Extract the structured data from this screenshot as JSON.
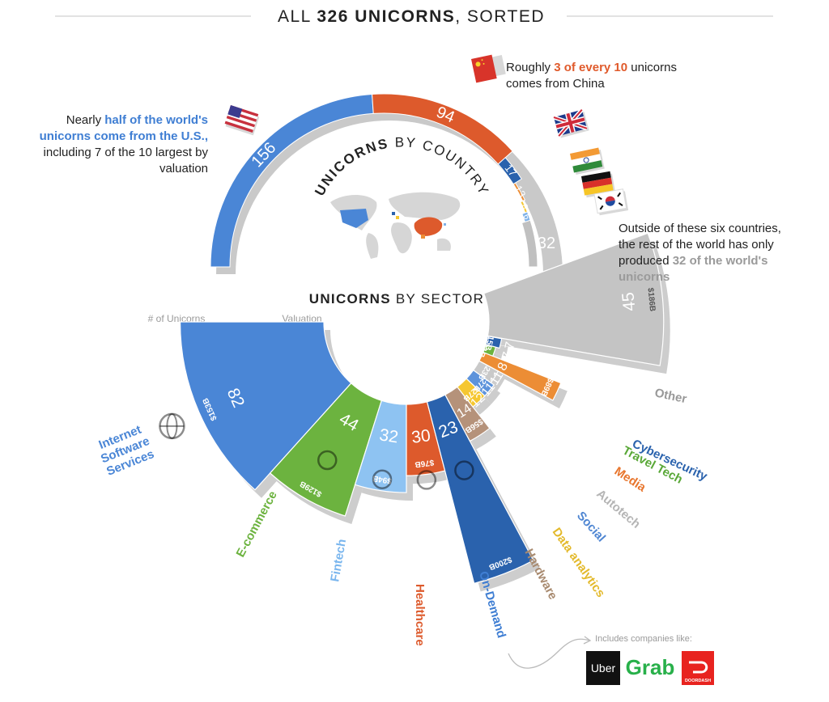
{
  "header": {
    "title_pre": "ALL ",
    "title_bold": "326 UNICORNS",
    "title_post": ", SORTED"
  },
  "colors": {
    "us": "#4a86d6",
    "china": "#dd5a2c",
    "uk": "#2a62ad",
    "india": "#ec8d35",
    "germany": "#f5c731",
    "korea": "#7fb2e8",
    "rest": "#c0c0c0",
    "shadow": "#c9c9c9",
    "us_text": "#3f7ed3",
    "china_text": "#e05a2b",
    "grey_text": "#9a9a9a"
  },
  "chart_data": [
    {
      "type": "pie",
      "title_bold": "UNICORNS",
      "title_rest": " BY COUNTRY",
      "categories": [
        "United States",
        "China",
        "United Kingdom",
        "India",
        "Germany",
        "South Korea",
        "Rest of world"
      ],
      "values": [
        156,
        94,
        17,
        13,
        8,
        6,
        32
      ],
      "labels": [
        "156",
        "94",
        "17",
        "13",
        "8",
        "6",
        "32"
      ],
      "total": 326
    },
    {
      "type": "pie",
      "title_bold": "UNICORNS",
      "title_rest": " BY SECTOR",
      "column_label_count": "# of Unicorns",
      "column_label_valuation": "Valuation",
      "categories": [
        "Internet Software Services",
        "E-commerce",
        "Fintech",
        "Healthcare",
        "On-Demand",
        "Hardware",
        "Data analytics",
        "Social",
        "Autotech",
        "Media",
        "Travel Tech",
        "Cybersecurity",
        "Other"
      ],
      "display_names": [
        [
          "Internet",
          "Software",
          "Services"
        ],
        [
          "E-commerce"
        ],
        [
          "Fintech"
        ],
        [
          "Healthcare"
        ],
        [
          "On-Demand"
        ],
        [
          "Hardware"
        ],
        [
          "Data analytics"
        ],
        [
          "Social"
        ],
        [
          "Autotech"
        ],
        [
          "Media"
        ],
        [
          "Travel Tech"
        ],
        [
          "Cybersecurity"
        ],
        [
          "Other"
        ]
      ],
      "counts": [
        82,
        44,
        32,
        30,
        23,
        14,
        12,
        11,
        11,
        8,
        7,
        7,
        45
      ],
      "valuation_billion_usd": [
        153,
        129,
        94,
        76,
        200,
        56,
        27,
        27,
        23,
        89,
        11,
        15,
        186
      ],
      "valuation_labels": [
        "$153B",
        "$129B",
        "$94B",
        "$76B",
        "$200B",
        "$56B",
        "$27B",
        "$27B",
        "$23B",
        "$89B",
        "$11B",
        "$15B",
        "$186B"
      ],
      "colors": [
        "#4a86d6",
        "#6cb33f",
        "#8ec3f2",
        "#dd5a2c",
        "#2a62ad",
        "#b5927a",
        "#f5c731",
        "#5d93db",
        "#c9c9c9",
        "#ec8d35",
        "#6cb33f",
        "#2a62ad",
        "#c4c4c4"
      ],
      "label_colors": [
        "#4a86d6",
        "#6cb33f",
        "#7ab6ee",
        "#dd5a2c",
        "#3f7ed3",
        "#a88a6f",
        "#e3b92a",
        "#4f86d2",
        "#b5b5b5",
        "#e8762e",
        "#5aa838",
        "#2a62ad",
        "#999999"
      ],
      "icons": [
        "globe-icon",
        "shopping-cart-icon",
        "credit-card-icon",
        "medical-cross-icon",
        "thumbs-up-icon",
        "chip-icon",
        "chart-icon",
        "heart-icon",
        "car-icon",
        "media-icon",
        "plane-icon",
        "lock-icon",
        ""
      ]
    }
  ],
  "annotations": {
    "us": {
      "pre": "Nearly ",
      "bold": "half of the world's unicorns come from the U.S.,",
      "post": " including 7 of the 10 largest by valuation"
    },
    "china": {
      "pre": "Roughly ",
      "bold": "3 of every 10",
      "post": " unicorns comes from China"
    },
    "rest": {
      "pre": "Outside of these six countries, the rest of the world has only produced ",
      "bold": "32 of the world's unicorns"
    },
    "ondemand": {
      "label": "Includes companies like:",
      "logos": [
        "Uber",
        "Grab",
        "DOORDASH"
      ]
    }
  }
}
